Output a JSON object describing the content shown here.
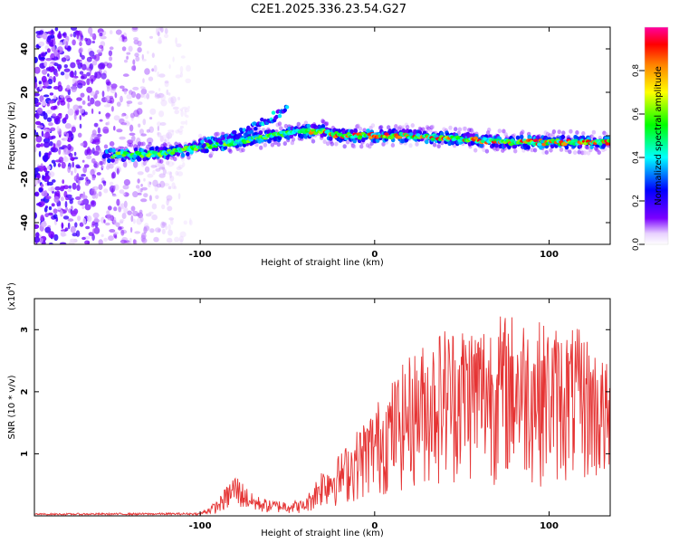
{
  "title": "C2E1.2025.336.23.54.G27",
  "chart_data": [
    {
      "type": "heatmap",
      "name": "spectrogram",
      "xlabel": "Height of straight line (km)",
      "ylabel": "Frequency (Hz)",
      "xlim": [
        -195,
        135
      ],
      "ylim": [
        -50,
        50
      ],
      "xticks": [
        -100,
        0,
        100
      ],
      "yticks": [
        -40,
        -20,
        0,
        20,
        40
      ],
      "colorbar": {
        "label": "Normalized spectral amplitude",
        "range": [
          0,
          1
        ],
        "ticks": [
          0.0,
          0.2,
          0.4,
          0.6,
          0.8
        ],
        "tick_labels": [
          "0.0",
          "0.2",
          "0.4",
          "0.6",
          "0.8"
        ]
      },
      "ridge": {
        "description": "dominant frequency track",
        "x": [
          -150,
          -120,
          -100,
          -80,
          -60,
          -40,
          -30,
          -20,
          0,
          20,
          40,
          60,
          80,
          100,
          120,
          135
        ],
        "y": [
          -9,
          -8,
          -5,
          -3,
          0,
          2,
          2,
          0,
          0,
          0,
          -1,
          -2,
          -3,
          -3,
          -3,
          -3
        ]
      },
      "branch": {
        "description": "secondary upper feature",
        "x": [
          -100,
          -80,
          -70,
          -60,
          -50
        ],
        "y": [
          -4,
          0,
          4,
          8,
          12
        ]
      }
    },
    {
      "type": "line",
      "name": "snr",
      "xlabel": "Height of straight line (km)",
      "ylabel": "SNR (10 * v/v)",
      "y_multiplier": "(x10",
      "y_multiplier_exp": "4",
      "xlim": [
        -195,
        135
      ],
      "ylim": [
        0,
        3.5
      ],
      "xticks": [
        -100,
        0,
        100
      ],
      "yticks": [
        1,
        2,
        3
      ],
      "series": [
        {
          "name": "SNR",
          "color": "#e53333",
          "envelope_x": [
            -195,
            -100,
            -90,
            -80,
            -70,
            -60,
            -40,
            -30,
            -20,
            0,
            20,
            40,
            60,
            80,
            100,
            120,
            135
          ],
          "envelope_y": [
            0.04,
            0.05,
            0.25,
            0.7,
            0.35,
            0.25,
            0.25,
            0.8,
            1.0,
            1.8,
            2.6,
            3.1,
            3.2,
            3.3,
            3.1,
            3.0,
            2.4
          ]
        }
      ]
    }
  ]
}
